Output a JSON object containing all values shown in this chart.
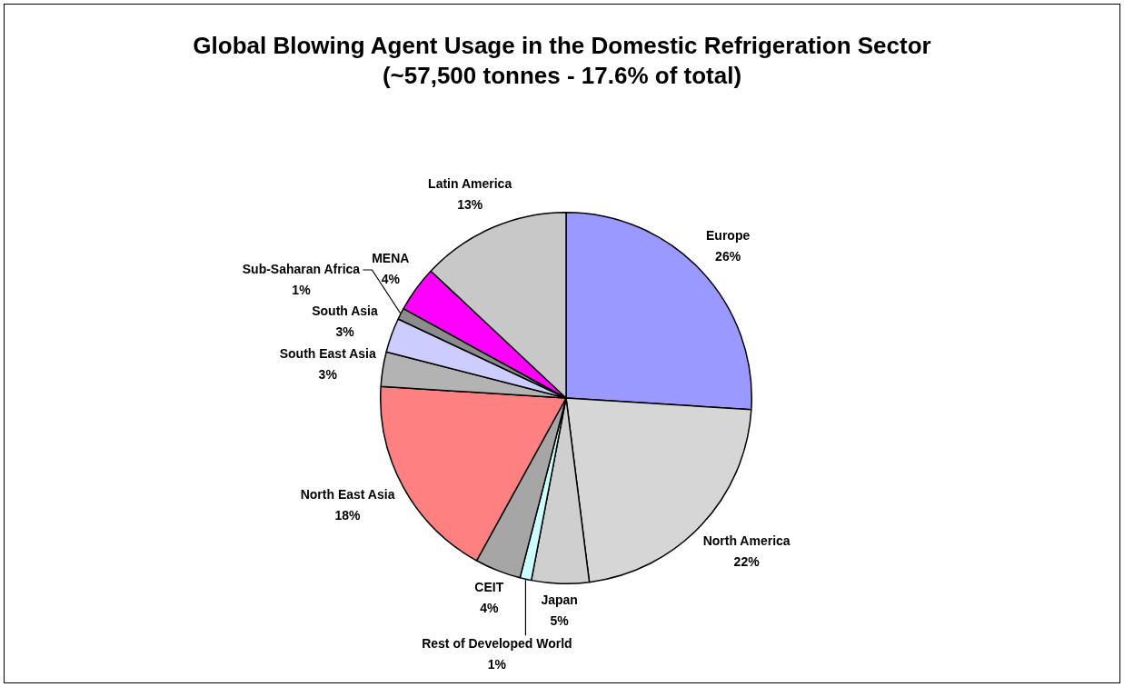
{
  "chart_data": {
    "type": "pie",
    "title": "Global Blowing Agent Usage in the Domestic Refrigeration Sector",
    "subtitle": "(~57,500 tonnes - 17.6% of total)",
    "categories": [
      "Europe",
      "North America",
      "Japan",
      "Rest of Developed World",
      "CEIT",
      "North East Asia",
      "South East Asia",
      "South Asia",
      "Sub-Saharan Africa",
      "MENA",
      "Latin America"
    ],
    "values": [
      26,
      22,
      5,
      1,
      4,
      18,
      3,
      3,
      1,
      4,
      13
    ],
    "colors": [
      "#9999ff",
      "#d6d6d6",
      "#cfcfcf",
      "#ccffff",
      "#a6a6a6",
      "#ff8080",
      "#b3b3b3",
      "#ccccff",
      "#8c8c8c",
      "#ff00ff",
      "#c8c8c8"
    ],
    "value_labels": [
      "26%",
      "22%",
      "5%",
      "1%",
      "4%",
      "18%",
      "3%",
      "3%",
      "1%",
      "4%",
      "13%"
    ]
  }
}
